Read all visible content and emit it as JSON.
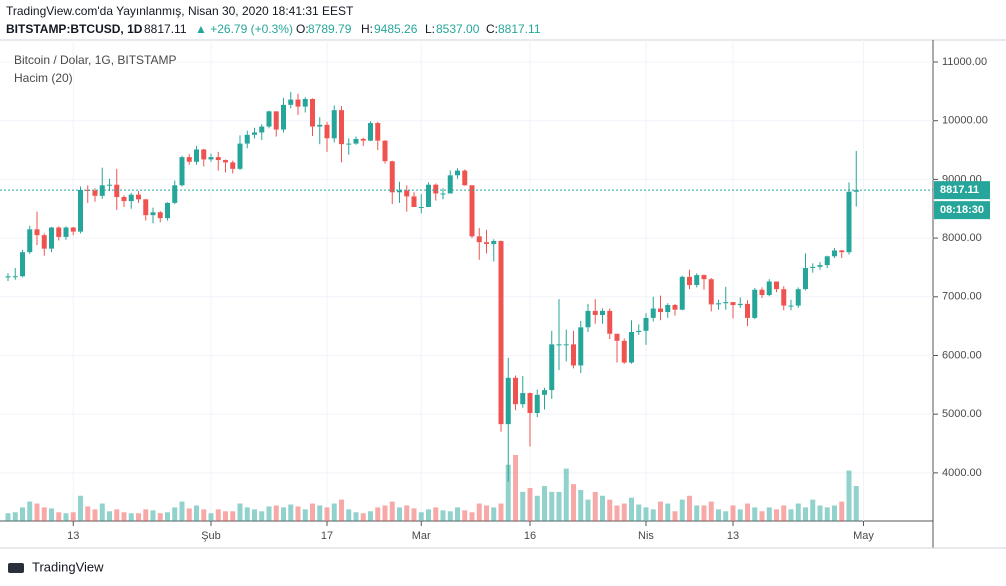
{
  "header": {
    "published": "TradingView.com'da Yayınlanmış, Nisan 30, 2020 18:41:31 EEST",
    "symbol": "BITSTAMP:BTCUSD, 1D",
    "last": "8817.11",
    "change": "▲ +26.79 (+0.3%)",
    "o_label": "O:",
    "o_value": "8789.79",
    "h_label": "H:",
    "h_value": "9485.26",
    "l_label": "L:",
    "l_value": "8537.00",
    "c_label": "C:",
    "c_value": "8817.11"
  },
  "footer": {
    "brand": "TradingView"
  },
  "chart_data": {
    "type": "candlestick",
    "title": "Bitcoin / Dolar, 1G, BITSTAMP",
    "volume_label": "Hacim (20)",
    "countdown": "08:18:30",
    "up_color": "#26a69a",
    "down_color": "#ef5350",
    "grid": true,
    "ylim": [
      3180,
      11375
    ],
    "yticks": [
      {
        "value": 4000,
        "label": "4000.00"
      },
      {
        "value": 5000,
        "label": "5000.00"
      },
      {
        "value": 6000,
        "label": "6000.00"
      },
      {
        "value": 7000,
        "label": "7000.00"
      },
      {
        "value": 8000,
        "label": "8000.00"
      },
      {
        "value": 9000,
        "label": "9000.00"
      },
      {
        "value": 10000,
        "label": "10000.00"
      },
      {
        "value": 11000,
        "label": "11000.00"
      }
    ],
    "xticks": [
      {
        "value": 9,
        "label": "13"
      },
      {
        "value": 28,
        "label": "Şub"
      },
      {
        "value": 44,
        "label": "17"
      },
      {
        "value": 57,
        "label": "Mar"
      },
      {
        "value": 72,
        "label": "16"
      },
      {
        "value": 88,
        "label": "Nis"
      },
      {
        "value": 100,
        "label": "13"
      },
      {
        "value": 118,
        "label": "May"
      }
    ],
    "open": [
      7330,
      7350,
      7350,
      7760,
      8150,
      8050,
      7820,
      8180,
      8020,
      8180,
      8110,
      8820,
      8810,
      8720,
      8900,
      8910,
      8700,
      8630,
      8740,
      8660,
      8390,
      8440,
      8340,
      8600,
      8900,
      9380,
      9300,
      9510,
      9340,
      9380,
      9330,
      9290,
      9180,
      9610,
      9760,
      9800,
      9900,
      10160,
      9850,
      10270,
      10360,
      10240,
      10370,
      9900,
      9930,
      9700,
      10180,
      9600,
      9610,
      9690,
      9660,
      9960,
      9660,
      9310,
      8780,
      8810,
      8710,
      8530,
      8530,
      8910,
      8760,
      8760,
      9070,
      9150,
      8900,
      8030,
      7930,
      7900,
      7950,
      4830,
      5620,
      5170,
      5360,
      5020,
      5330,
      5410,
      6190,
      6190,
      6190,
      5830,
      6480,
      6760,
      6690,
      6760,
      6370,
      6250,
      5880,
      6400,
      6420,
      6640,
      6800,
      6740,
      6860,
      6780,
      7340,
      7200,
      7370,
      7300,
      6870,
      6890,
      6910,
      6860,
      6880,
      6640,
      7120,
      7030,
      7260,
      7130,
      6850,
      6850,
      7130,
      7490,
      7510,
      7540,
      7690,
      7790,
      7760,
      8789.79
    ],
    "high": [
      7400,
      7490,
      7800,
      8210,
      8450,
      8080,
      8190,
      8200,
      8200,
      8190,
      8880,
      8900,
      8850,
      9200,
      9010,
      9180,
      8730,
      8770,
      8800,
      8670,
      8520,
      8460,
      8610,
      8980,
      9400,
      9430,
      9570,
      9520,
      9440,
      9470,
      9340,
      9320,
      9750,
      9830,
      9880,
      9940,
      10170,
      10160,
      10390,
      10490,
      10460,
      10400,
      10380,
      10060,
      9980,
      10260,
      10250,
      9700,
      9730,
      9710,
      9990,
      9980,
      9670,
      9320,
      8960,
      8900,
      8780,
      8750,
      8950,
      8930,
      8850,
      9150,
      9190,
      9170,
      8900,
      8170,
      8140,
      7980,
      7960,
      5960,
      5660,
      5650,
      5370,
      5420,
      5450,
      6420,
      6960,
      6440,
      6420,
      6590,
      6880,
      6960,
      6800,
      6800,
      6370,
      6290,
      6600,
      6530,
      6720,
      7000,
      7020,
      6890,
      6880,
      7360,
      7460,
      7400,
      7380,
      7320,
      6950,
      7170,
      6910,
      6990,
      6940,
      7150,
      7160,
      7300,
      7260,
      7180,
      6950,
      7160,
      7740,
      7570,
      7590,
      7700,
      7830,
      7800,
      8950,
      9485.26
    ],
    "low": [
      7270,
      7290,
      7330,
      7730,
      7880,
      7700,
      7760,
      7960,
      7970,
      8050,
      8080,
      8600,
      8620,
      8670,
      8800,
      8480,
      8530,
      8500,
      8600,
      8300,
      8250,
      8270,
      8300,
      8580,
      8880,
      9250,
      9250,
      9220,
      9300,
      9150,
      9120,
      9100,
      9160,
      9530,
      9700,
      9670,
      9870,
      9730,
      9800,
      10210,
      10100,
      10140,
      9740,
      9600,
      9470,
      9630,
      9290,
      9420,
      9590,
      9570,
      9650,
      9500,
      9270,
      8580,
      8600,
      8450,
      8530,
      8420,
      8530,
      8640,
      8660,
      8760,
      9010,
      8890,
      8000,
      7630,
      7740,
      7600,
      4700,
      3850,
      5070,
      5110,
      4450,
      4950,
      5080,
      5260,
      5750,
      5900,
      5780,
      5700,
      6400,
      6540,
      6540,
      6280,
      5880,
      5860,
      5860,
      6350,
      6180,
      6580,
      6600,
      6640,
      6680,
      6770,
      7130,
      7160,
      7120,
      6750,
      6780,
      6780,
      6630,
      6810,
      6500,
      6620,
      6980,
      7010,
      7080,
      6770,
      6770,
      6810,
      7110,
      7410,
      7460,
      7490,
      7660,
      7660,
      7720,
      8537
    ],
    "close": [
      7350,
      7350,
      7760,
      8150,
      8050,
      7820,
      8180,
      8020,
      8180,
      8110,
      8820,
      8810,
      8720,
      8900,
      8910,
      8700,
      8630,
      8740,
      8660,
      8390,
      8440,
      8340,
      8600,
      8900,
      9380,
      9300,
      9510,
      9340,
      9380,
      9330,
      9290,
      9180,
      9610,
      9760,
      9800,
      9900,
      10160,
      9850,
      10270,
      10360,
      10240,
      10370,
      9900,
      9930,
      9700,
      10180,
      9600,
      9610,
      9690,
      9660,
      9960,
      9660,
      9310,
      8780,
      8810,
      8710,
      8530,
      8530,
      8910,
      8760,
      8760,
      9070,
      9150,
      8900,
      8030,
      7930,
      7900,
      7950,
      4830,
      5620,
      5170,
      5360,
      5020,
      5330,
      5410,
      6190,
      6190,
      6190,
      5830,
      6480,
      6760,
      6690,
      6760,
      6370,
      6250,
      5880,
      6400,
      6420,
      6640,
      6800,
      6740,
      6860,
      6780,
      7340,
      7200,
      7370,
      7300,
      6870,
      6890,
      6910,
      6860,
      6880,
      6640,
      7120,
      7030,
      7260,
      7130,
      6850,
      6850,
      7130,
      7490,
      7510,
      7540,
      7690,
      7790,
      7760,
      8790,
      8817.11
    ],
    "volume": [
      8,
      9,
      14,
      20,
      18,
      14,
      13,
      9,
      8,
      9,
      26,
      15,
      12,
      18,
      10,
      12,
      9,
      8,
      8,
      12,
      11,
      8,
      9,
      14,
      20,
      13,
      16,
      12,
      8,
      12,
      10,
      10,
      18,
      14,
      12,
      10,
      15,
      16,
      14,
      17,
      15,
      12,
      18,
      16,
      14,
      18,
      22,
      12,
      9,
      8,
      10,
      14,
      16,
      20,
      14,
      16,
      13,
      9,
      12,
      14,
      11,
      10,
      14,
      11,
      9,
      18,
      16,
      14,
      18,
      58,
      68,
      30,
      34,
      26,
      36,
      30,
      30,
      54,
      38,
      32,
      22,
      30,
      26,
      22,
      16,
      18,
      24,
      17,
      14,
      12,
      20,
      18,
      10,
      22,
      26,
      16,
      16,
      20,
      12,
      10,
      16,
      12,
      18,
      14,
      10,
      14,
      12,
      16,
      12,
      18,
      14,
      22,
      16,
      14,
      16,
      20,
      52,
      36
    ]
  }
}
